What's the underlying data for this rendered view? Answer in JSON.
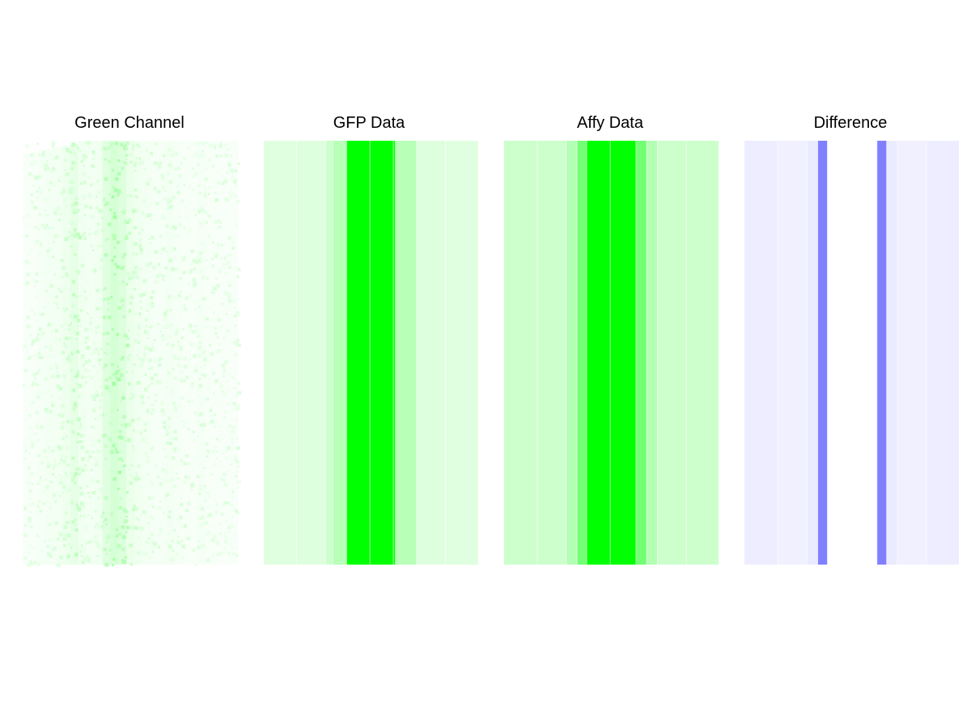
{
  "chart_data": [
    {
      "type": "heatmap",
      "title": "Green Channel",
      "colormap": "white-to-green",
      "color": "#00ff00",
      "description_note": "",
      "columns": 27,
      "intensity": [
        0.05,
        0.06,
        0.07,
        0.08,
        0.09,
        0.12,
        0.18,
        0.1,
        0.08,
        0.1,
        0.22,
        0.3,
        0.24,
        0.14,
        0.1,
        0.08,
        0.07,
        0.07,
        0.08,
        0.07,
        0.06,
        0.06,
        0.07,
        0.06,
        0.05,
        0.05,
        0.05
      ]
    },
    {
      "type": "heatmap",
      "title": "GFP Data",
      "colormap": "white-to-green",
      "color": "#00ff00",
      "columns": 10,
      "intensity": [
        0.12,
        0.12,
        0.18,
        0.25,
        1.0,
        1.0,
        1.0,
        0.25,
        0.12,
        0.12
      ],
      "column_widths": [
        1.55,
        1.35,
        0.35,
        0.65,
        1.1,
        1.1,
        0.1,
        1.0,
        1.35,
        1.55
      ],
      "column_intensity": [
        0.12,
        0.13,
        0.2,
        0.28,
        1.0,
        1.0,
        1.0,
        0.28,
        0.13,
        0.12
      ]
    },
    {
      "type": "heatmap",
      "title": "Affy Data",
      "colormap": "white-to-green",
      "color": "#00ff00",
      "columns": 10,
      "column_widths": [
        1.55,
        1.35,
        0.5,
        0.45,
        1.1,
        1.2,
        0.5,
        0.5,
        1.35,
        1.5
      ],
      "column_intensity": [
        0.2,
        0.2,
        0.3,
        0.55,
        1.0,
        1.0,
        0.55,
        0.3,
        0.2,
        0.2
      ]
    },
    {
      "type": "heatmap",
      "title": "Difference",
      "colormap": "white-to-blue",
      "color": "#0000ff",
      "columns": 10,
      "column_widths": [
        1.55,
        1.35,
        0.5,
        0.45,
        1.1,
        1.2,
        0.45,
        0.5,
        1.35,
        1.5
      ],
      "column_intensity": [
        0.07,
        0.06,
        0.08,
        0.5,
        0.0,
        0.0,
        0.5,
        0.08,
        0.06,
        0.07
      ]
    }
  ]
}
